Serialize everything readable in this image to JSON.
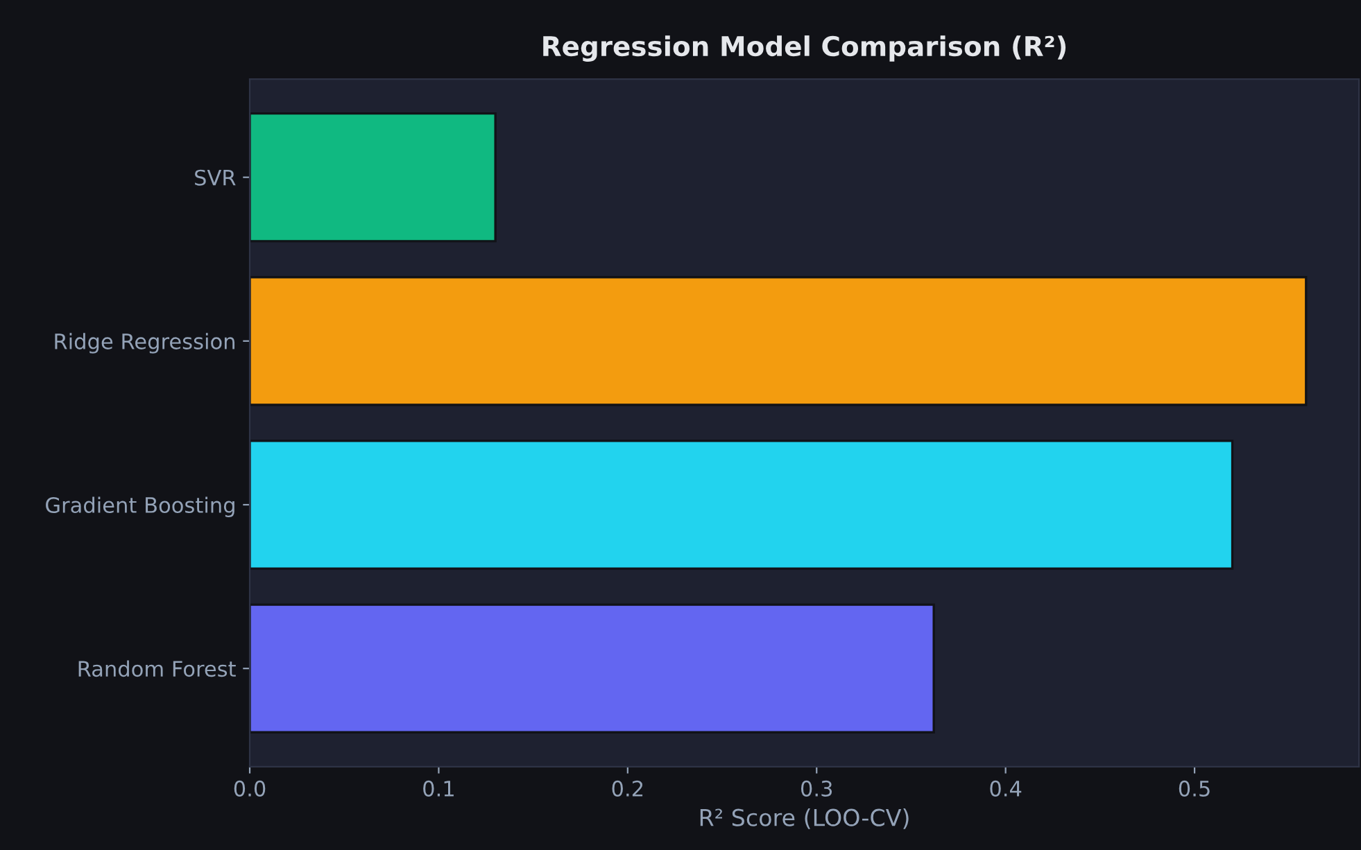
{
  "chart_data": {
    "type": "bar",
    "orientation": "horizontal",
    "title": "Regression Model Comparison (R²)",
    "xlabel": "R² Score (LOO-CV)",
    "categories": [
      "SVR",
      "Ridge Regression",
      "Gradient Boosting",
      "Random Forest"
    ],
    "values": [
      0.13,
      0.559,
      0.52,
      0.362
    ],
    "colors": [
      "#10b981",
      "#f39c0f",
      "#22d3ee",
      "#6366f1"
    ],
    "xlim": [
      0,
      0.587
    ],
    "xticks": [
      {
        "value": 0,
        "label": "0.0"
      },
      0.1,
      0.2,
      0.3,
      0.4,
      0.5
    ],
    "grid": false,
    "legend": false
  }
}
